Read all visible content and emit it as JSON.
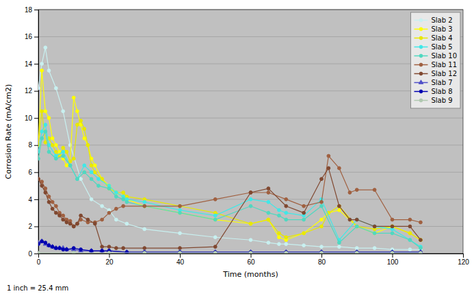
{
  "chart_data": {
    "type": "line",
    "xlabel": "Time (months)",
    "ylabel": "Corrosion Rate (mA/cm2)",
    "annotations": [
      "1 inch = 25.4 mm"
    ],
    "xlim": [
      0,
      120
    ],
    "ylim": [
      0,
      18
    ],
    "xticks": [
      0,
      20,
      40,
      60,
      80,
      100,
      120
    ],
    "yticks": [
      0,
      2,
      4,
      6,
      8,
      10,
      12,
      14,
      16,
      18
    ],
    "grid": true,
    "legend": "upper-right",
    "series": [
      {
        "name": "Slab 2",
        "color": "#c8f0f0",
        "marker": "circle",
        "x": [
          0,
          1,
          2,
          3,
          5,
          7,
          9,
          12,
          15,
          18,
          20,
          22,
          25,
          30,
          40,
          50,
          60,
          65,
          68,
          70,
          75,
          80,
          85,
          90,
          95,
          100,
          105,
          108
        ],
        "values": [
          12.2,
          14.0,
          15.2,
          13.5,
          12.2,
          10.5,
          8.0,
          5.5,
          4.0,
          3.5,
          3.2,
          2.5,
          2.2,
          1.8,
          1.5,
          1.2,
          1.0,
          0.8,
          0.7,
          0.7,
          0.6,
          0.5,
          0.5,
          0.4,
          0.4,
          0.3,
          0.3,
          0.3
        ]
      },
      {
        "name": "Slab 3",
        "color": "#ffff00",
        "marker": "circle",
        "x": [
          0,
          1,
          2,
          3,
          4,
          5,
          6,
          7,
          8,
          9,
          10,
          11,
          12,
          13,
          14,
          15,
          16,
          18,
          20,
          22,
          24,
          25,
          30,
          40,
          50,
          60,
          65,
          68,
          70,
          75,
          80,
          82,
          85,
          90,
          95,
          100,
          105,
          108
        ],
        "values": [
          8.0,
          13.5,
          10.5,
          10.0,
          8.5,
          8.0,
          7.5,
          7.0,
          6.5,
          6.8,
          11.5,
          10.5,
          9.5,
          8.5,
          8.0,
          7.0,
          6.5,
          5.5,
          5.0,
          4.5,
          4.2,
          4.0,
          3.5,
          3.0,
          2.5,
          2.2,
          2.5,
          1.2,
          1.0,
          1.5,
          2.5,
          3.0,
          3.2,
          2.0,
          1.5,
          2.0,
          1.5,
          1.0
        ]
      },
      {
        "name": "Slab 4",
        "color": "#e8e800",
        "marker": "circle",
        "x": [
          0,
          1,
          2,
          3,
          4,
          5,
          6,
          7,
          8,
          9,
          10,
          11,
          12,
          13,
          14,
          15,
          16,
          18,
          20,
          22,
          24,
          25,
          30,
          40,
          50,
          60,
          65,
          68,
          70,
          75,
          80,
          82,
          85,
          90,
          95,
          100,
          105,
          108
        ],
        "values": [
          8.0,
          10.5,
          8.2,
          8.5,
          8.0,
          7.5,
          7.2,
          7.8,
          7.5,
          6.8,
          7.0,
          9.5,
          9.8,
          9.2,
          8.0,
          6.5,
          6.0,
          5.5,
          4.8,
          4.5,
          4.5,
          4.2,
          4.0,
          3.5,
          3.0,
          2.2,
          2.5,
          1.5,
          1.2,
          1.5,
          2.0,
          3.0,
          3.5,
          2.0,
          1.8,
          2.0,
          1.5,
          1.0
        ]
      },
      {
        "name": "Slab 5",
        "color": "#40e8e8",
        "marker": "circle",
        "x": [
          0,
          1,
          2,
          3,
          5,
          7,
          9,
          11,
          13,
          15,
          17,
          20,
          22,
          24,
          25,
          30,
          40,
          50,
          60,
          65,
          68,
          70,
          75,
          80,
          85,
          90,
          95,
          100,
          105,
          108
        ],
        "values": [
          7.5,
          9.0,
          9.5,
          8.0,
          7.2,
          7.5,
          6.5,
          5.5,
          6.5,
          6.0,
          5.5,
          5.0,
          4.5,
          4.2,
          4.0,
          3.8,
          3.2,
          2.8,
          4.0,
          3.8,
          3.2,
          3.0,
          2.8,
          4.0,
          1.0,
          2.5,
          2.0,
          1.8,
          1.0,
          0.5
        ]
      },
      {
        "name": "Slab 10",
        "color": "#50d8c0",
        "marker": "circle",
        "x": [
          0,
          1,
          2,
          3,
          5,
          7,
          9,
          11,
          13,
          15,
          17,
          20,
          22,
          24,
          25,
          30,
          40,
          50,
          60,
          65,
          68,
          70,
          75,
          80,
          85,
          90,
          95,
          100,
          105,
          108
        ],
        "values": [
          7.0,
          8.5,
          9.0,
          7.5,
          7.0,
          7.2,
          6.5,
          5.5,
          6.0,
          5.5,
          5.0,
          4.8,
          4.2,
          4.0,
          3.8,
          3.5,
          3.0,
          2.5,
          3.5,
          3.0,
          2.8,
          2.5,
          2.5,
          3.5,
          0.8,
          2.0,
          1.5,
          1.5,
          1.0,
          0.4
        ]
      },
      {
        "name": "Slab 11",
        "color": "#a06040",
        "marker": "circle",
        "x": [
          0,
          1,
          2,
          3,
          4,
          5,
          6,
          7,
          8,
          9,
          10,
          11,
          12,
          14,
          16,
          18,
          20,
          22,
          24,
          30,
          40,
          50,
          60,
          65,
          70,
          75,
          80,
          82,
          85,
          88,
          90,
          95,
          100,
          105,
          108
        ],
        "values": [
          5.5,
          5.3,
          4.8,
          4.2,
          3.8,
          3.5,
          3.0,
          2.8,
          2.5,
          2.4,
          2.0,
          2.2,
          2.5,
          2.3,
          2.3,
          2.5,
          3.0,
          3.3,
          3.5,
          3.5,
          3.5,
          4.0,
          4.5,
          4.5,
          4.0,
          3.5,
          3.8,
          7.2,
          6.3,
          4.5,
          4.7,
          4.7,
          2.5,
          2.5,
          2.3
        ]
      },
      {
        "name": "Slab 12",
        "color": "#804830",
        "marker": "circle",
        "x": [
          0,
          1,
          2,
          3,
          4,
          5,
          6,
          7,
          8,
          9,
          10,
          11,
          12,
          14,
          16,
          18,
          20,
          22,
          24,
          30,
          40,
          50,
          60,
          65,
          70,
          75,
          80,
          82,
          85,
          88,
          90,
          95,
          100,
          105,
          108
        ],
        "values": [
          5.5,
          5.0,
          4.5,
          3.8,
          3.3,
          3.0,
          2.8,
          2.5,
          2.3,
          2.2,
          2.0,
          2.2,
          2.8,
          2.5,
          2.2,
          0.5,
          0.5,
          0.4,
          0.4,
          0.4,
          0.4,
          0.5,
          4.5,
          4.8,
          3.5,
          3.0,
          5.5,
          6.3,
          3.5,
          2.5,
          2.5,
          2.0,
          2.0,
          2.0,
          1.0
        ]
      },
      {
        "name": "Slab 7",
        "color": "#5050c8",
        "marker": "triangle",
        "x": [
          0,
          1,
          2,
          3,
          4,
          5,
          6,
          7,
          8,
          10,
          12,
          15,
          18,
          20,
          25,
          30,
          40,
          50,
          60,
          70,
          80,
          90,
          100,
          108
        ],
        "values": [
          0.8,
          0.9,
          0.7,
          0.6,
          0.5,
          0.4,
          0.4,
          0.4,
          0.3,
          0.3,
          0.2,
          0.2,
          0.2,
          0.2,
          0.1,
          0.1,
          0.1,
          0.1,
          0.1,
          0.1,
          0.1,
          0.1,
          0.1,
          0.1
        ]
      },
      {
        "name": "Slab 8",
        "color": "#0000b0",
        "marker": "circle",
        "x": [
          0,
          1,
          2,
          3,
          4,
          5,
          6,
          7,
          8,
          10,
          12,
          15,
          18,
          20,
          25,
          30,
          40,
          50,
          60,
          70,
          80,
          90,
          100,
          108
        ],
        "values": [
          0.7,
          0.9,
          0.8,
          0.6,
          0.5,
          0.4,
          0.4,
          0.3,
          0.3,
          0.4,
          0.3,
          0.2,
          0.2,
          0.2,
          0.1,
          0.1,
          0.1,
          0.1,
          0.1,
          0.1,
          0.1,
          0.1,
          0.1,
          0.1
        ]
      },
      {
        "name": "Slab 9",
        "color": "#b0c8b0",
        "marker": "circle",
        "x": [
          0,
          10,
          20,
          30,
          40,
          50,
          60,
          70,
          80,
          90,
          100,
          108
        ],
        "values": [
          0.05,
          0.05,
          0.05,
          0.05,
          0.05,
          0.05,
          0.05,
          0.05,
          0.05,
          0.05,
          0.05,
          0.05
        ]
      }
    ]
  }
}
